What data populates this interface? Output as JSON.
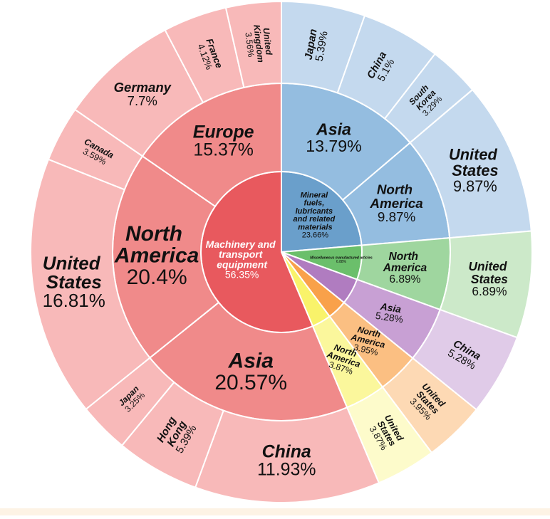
{
  "chart_data": {
    "type": "sunburst",
    "nodes": [
      {
        "name": "Mineral fuels, lubricants and related materials",
        "value": 23.66,
        "value_label": "23.66%",
        "color": "#6a9fcb",
        "children": [
          {
            "name": "Asia",
            "value": 13.79,
            "value_label": "13.79%",
            "color": "#94bde0",
            "children": [
              {
                "name": "Japan",
                "value": 5.39,
                "value_label": "5.39%",
                "color": "#c4d9ee"
              },
              {
                "name": "China",
                "value": 5.1,
                "value_label": "5.1%",
                "color": "#c4d9ee"
              },
              {
                "name": "South Korea",
                "value": 3.29,
                "value_label": "3.29%",
                "color": "#c4d9ee"
              }
            ]
          },
          {
            "name": "North America",
            "value": 9.87,
            "value_label": "9.87%",
            "color": "#94bde0",
            "children": [
              {
                "name": "United States",
                "value": 9.87,
                "value_label": "9.87%",
                "color": "#c4d9ee"
              }
            ]
          }
        ]
      },
      {
        "name": "Miscellaneous manufactured articles",
        "value": 6.88,
        "value_label": "6.88%",
        "color": "#6bbf6b",
        "children": [
          {
            "name": "North America",
            "value": 6.89,
            "value_label": "6.89%",
            "color": "#9fd69f",
            "children": [
              {
                "name": "United States",
                "value": 6.89,
                "value_label": "6.89%",
                "color": "#cce9c9"
              }
            ]
          }
        ]
      },
      {
        "name": null,
        "value": 5.28,
        "color": "#b07cc0",
        "children": [
          {
            "name": "Asia",
            "value": 5.28,
            "value_label": "5.28%",
            "color": "#c8a0d4",
            "children": [
              {
                "name": "China",
                "value": 5.28,
                "value_label": "5.28%",
                "color": "#e0cbe8"
              }
            ]
          }
        ]
      },
      {
        "name": null,
        "value": 3.95,
        "color": "#f9a14a",
        "children": [
          {
            "name": "North America",
            "value": 3.95,
            "value_label": "3.95%",
            "color": "#fbbf82",
            "children": [
              {
                "name": "United States",
                "value": 3.95,
                "value_label": "3.95%",
                "color": "#fdd9b4"
              }
            ]
          }
        ]
      },
      {
        "name": null,
        "value": 3.87,
        "color": "#f9f36a",
        "children": [
          {
            "name": "North America",
            "value": 3.87,
            "value_label": "3.87%",
            "color": "#fbf79c",
            "children": [
              {
                "name": "United States",
                "value": 3.87,
                "value_label": "3.87%",
                "color": "#fdfbcb"
              }
            ]
          }
        ]
      },
      {
        "name": "Machinery and transport equipment",
        "value": 56.35,
        "value_label": "56.35%",
        "color": "#e8595e",
        "label_color": "#ffffff",
        "children": [
          {
            "name": "Asia",
            "value": 20.57,
            "value_label": "20.57%",
            "color": "#f08a8a",
            "children": [
              {
                "name": "China",
                "value": 11.93,
                "value_label": "11.93%",
                "color": "#f8b9b9"
              },
              {
                "name": "Hong Kong",
                "value": 5.39,
                "value_label": "5.39%",
                "color": "#f8b9b9"
              },
              {
                "name": "Japan",
                "value": 3.25,
                "value_label": "3.25%",
                "color": "#f8b9b9"
              }
            ]
          },
          {
            "name": "North America",
            "value": 20.4,
            "value_label": "20.4%",
            "color": "#f08a8a",
            "children": [
              {
                "name": "United States",
                "value": 16.81,
                "value_label": "16.81%",
                "color": "#f8b9b9"
              },
              {
                "name": "Canada",
                "value": 3.59,
                "value_label": "3.59%",
                "color": "#f8b9b9"
              }
            ]
          },
          {
            "name": "Europe",
            "value": 15.37,
            "value_label": "15.37%",
            "color": "#f08a8a",
            "children": [
              {
                "name": "Germany",
                "value": 7.7,
                "value_label": "7.7%",
                "color": "#f8b9b9"
              },
              {
                "name": "France",
                "value": 4.12,
                "value_label": "4.12%",
                "color": "#f8b9b9"
              },
              {
                "name": "United Kingdom",
                "value": 3.56,
                "value_label": "3.56%",
                "color": "#f8b9b9"
              }
            ]
          }
        ]
      }
    ]
  }
}
